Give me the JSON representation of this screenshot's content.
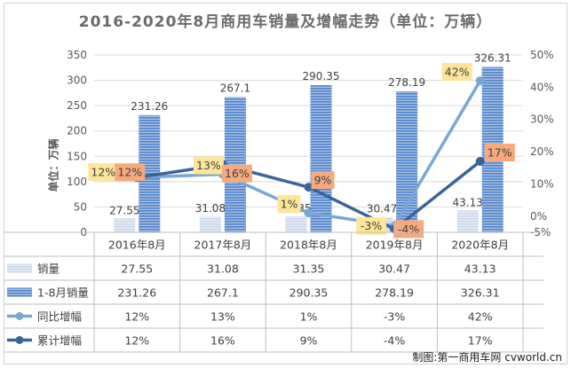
{
  "title": "2016-2020年8月商用车销量及增幅走势（单位：万辆）",
  "credit": "制图:第一商用车网 cvworld.cn",
  "chart_data": {
    "type": "bar",
    "categories": [
      "2016年8月",
      "2017年8月",
      "2018年8月",
      "2019年8月",
      "2020年8月"
    ],
    "ylabel": "单位：万辆",
    "ylim": [
      0,
      350
    ],
    "y_ticks": [
      "0",
      "50",
      "100",
      "150",
      "200",
      "250",
      "300",
      "350"
    ],
    "y2lim": [
      -5,
      50
    ],
    "y2_ticks": [
      "-5%",
      "0%",
      "10%",
      "20%",
      "30%",
      "40%",
      "50%"
    ],
    "series": [
      {
        "name": "销量",
        "kind": "bar",
        "values": [
          27.55,
          31.08,
          31.35,
          30.47,
          43.13
        ],
        "labels": [
          "27.55",
          "31.08",
          "31.35",
          "30.47",
          "43.13"
        ],
        "color": "#c9d6ec"
      },
      {
        "name": "1-8月销量",
        "kind": "bar",
        "values": [
          231.26,
          267.1,
          290.35,
          278.19,
          326.31
        ],
        "labels": [
          "231.26",
          "267.1",
          "290.35",
          "278.19",
          "326.31"
        ],
        "color": "#4f81c7"
      },
      {
        "name": "同比增幅",
        "kind": "line",
        "axis": "right",
        "values": [
          12,
          13,
          1,
          -3,
          42
        ],
        "labels": [
          "12%",
          "13%",
          "1%",
          "-3%",
          "42%"
        ],
        "color": "#7aa6d6",
        "label_bg": "#fde69a"
      },
      {
        "name": "累计增幅",
        "kind": "line",
        "axis": "right",
        "values": [
          12,
          16,
          9,
          -4,
          17
        ],
        "labels": [
          "12%",
          "16%",
          "9%",
          "-4%",
          "17%"
        ],
        "color": "#3a6496",
        "label_bg": "#f5a97f"
      }
    ],
    "grid": true,
    "legend": "data-table below chart"
  }
}
